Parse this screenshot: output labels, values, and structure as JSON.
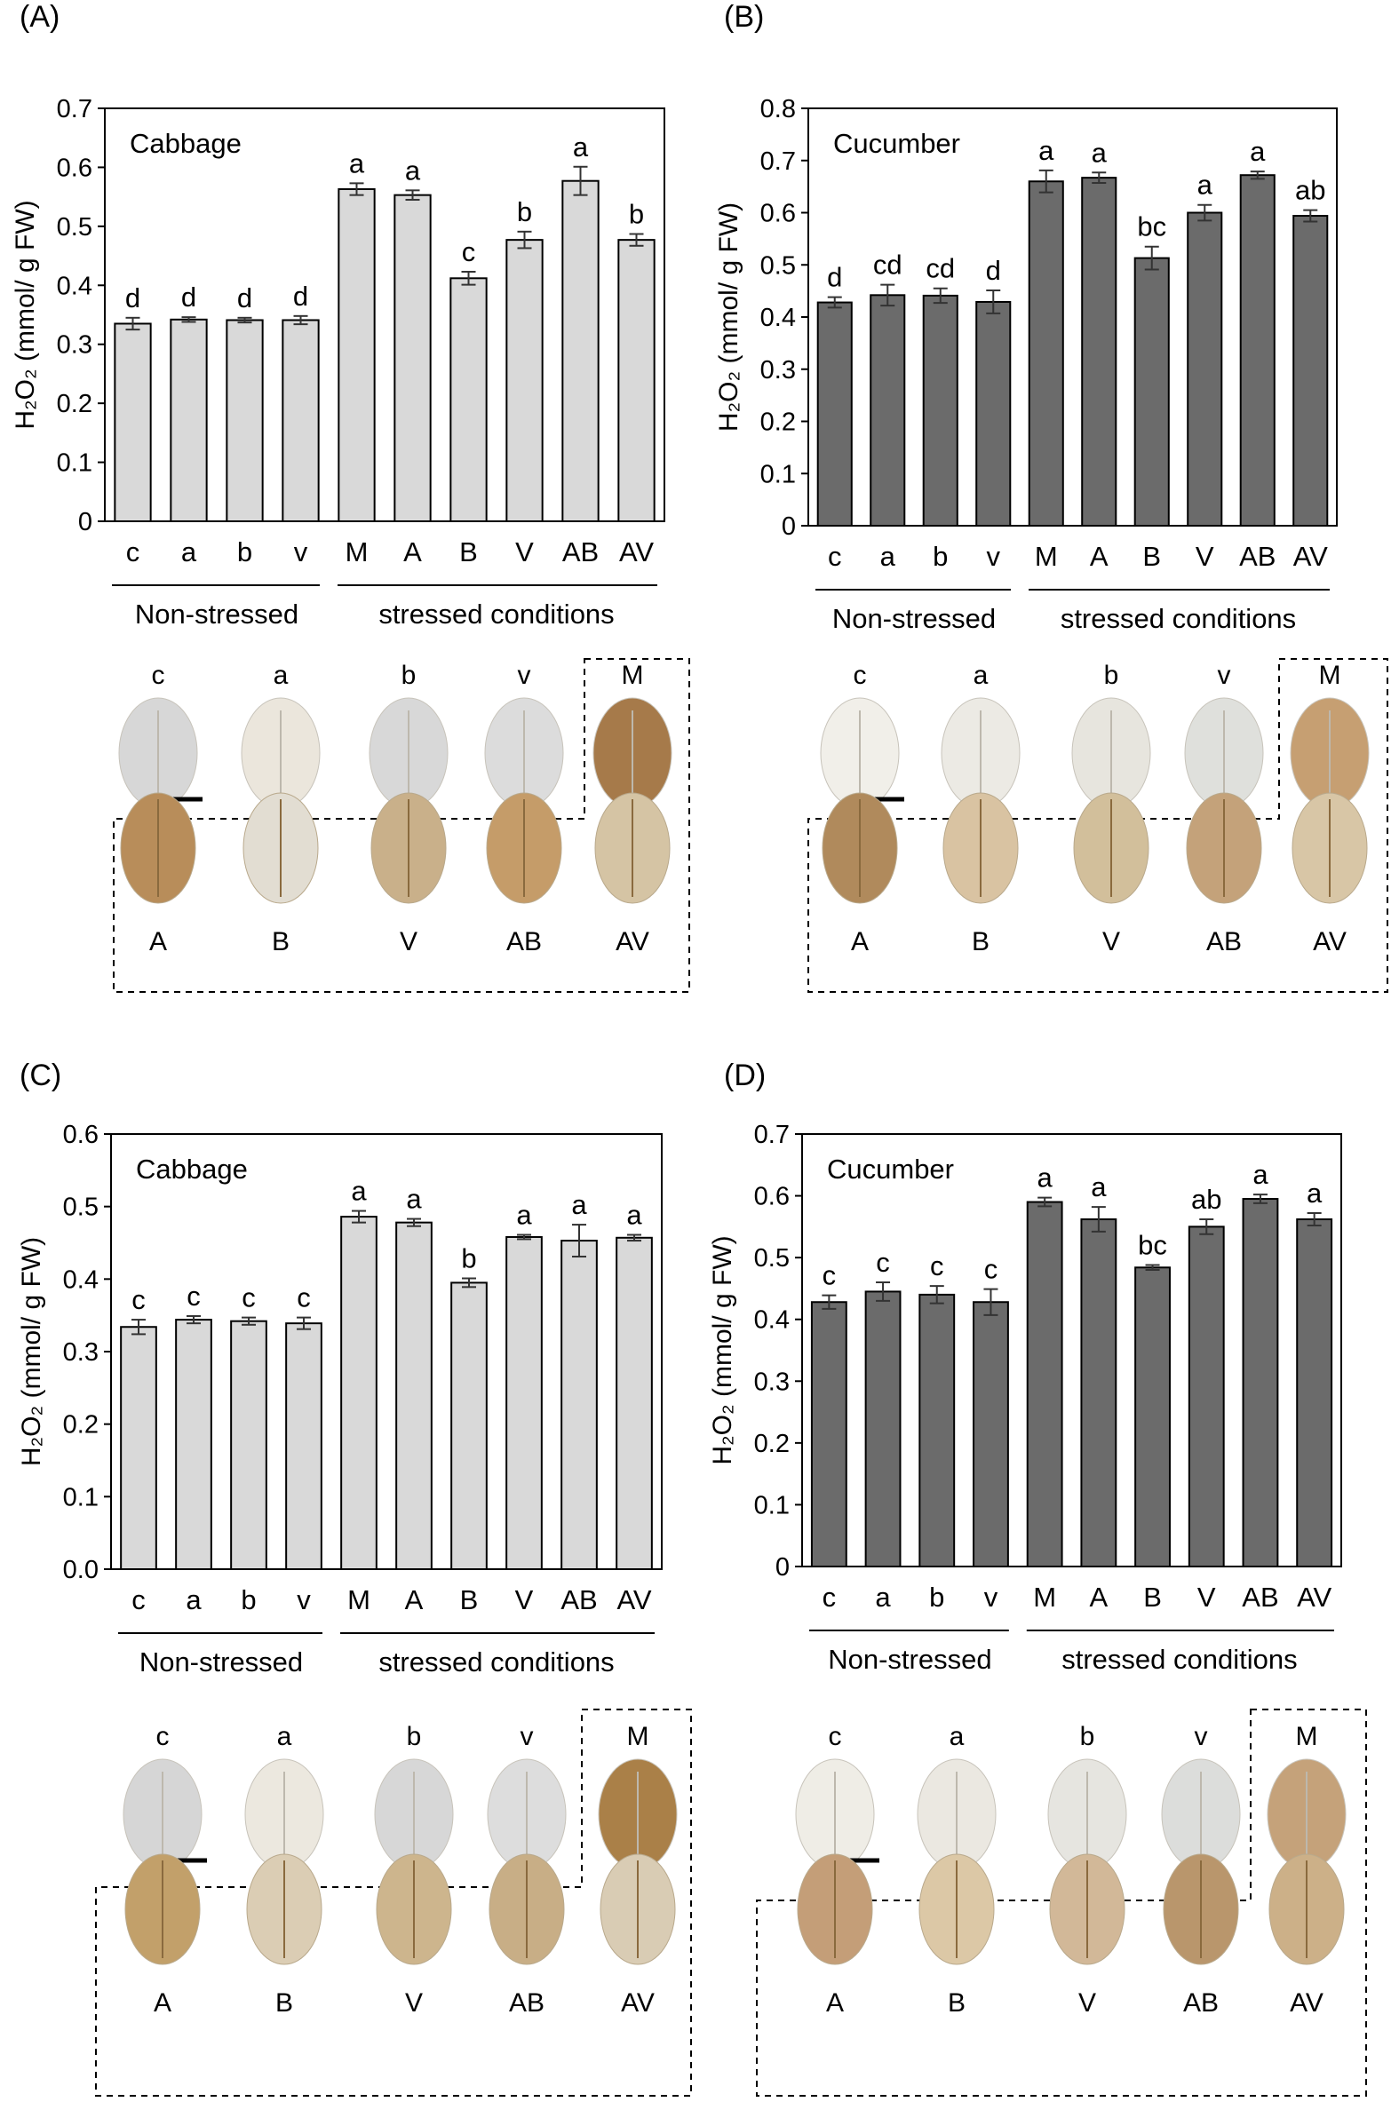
{
  "panels": [
    {
      "letter": "(A)"
    },
    {
      "letter": "(B)"
    },
    {
      "letter": "(C)"
    },
    {
      "letter": "(D)"
    }
  ],
  "chart_data": [
    {
      "type": "bar",
      "panel": "(A)",
      "title": "Cabbage",
      "ylabel": "H₂O₂ (mmol/ g FW)",
      "ylim": [
        0,
        0.7
      ],
      "yticks": [
        "0",
        "0.1",
        "0.2",
        "0.3",
        "0.4",
        "0.5",
        "0.6",
        "0.7"
      ],
      "categories": [
        "c",
        "a",
        "b",
        "v",
        "M",
        "A",
        "B",
        "V",
        "AB",
        "AV"
      ],
      "values": [
        0.335,
        0.342,
        0.341,
        0.341,
        0.563,
        0.553,
        0.412,
        0.477,
        0.577,
        0.477
      ],
      "errors": [
        0.01,
        0.004,
        0.004,
        0.007,
        0.01,
        0.008,
        0.011,
        0.014,
        0.024,
        0.01
      ],
      "significance": [
        "d",
        "d",
        "d",
        "d",
        "a",
        "a",
        "c",
        "b",
        "a",
        "b"
      ],
      "group_labels": [
        "Non-stressed",
        "stressed conditions"
      ],
      "bar_color": "#d9d9d9",
      "grid": false
    },
    {
      "type": "bar",
      "panel": "(B)",
      "title": "Cucumber",
      "ylabel": "H₂O₂ (mmol/ g FW)",
      "ylim": [
        0,
        0.8
      ],
      "yticks": [
        "0",
        "0.1",
        "0.2",
        "0.3",
        "0.4",
        "0.5",
        "0.6",
        "0.7",
        "0.8"
      ],
      "categories": [
        "c",
        "a",
        "b",
        "v",
        "M",
        "A",
        "B",
        "V",
        "AB",
        "AV"
      ],
      "values": [
        0.428,
        0.442,
        0.441,
        0.429,
        0.66,
        0.667,
        0.513,
        0.6,
        0.672,
        0.594
      ],
      "errors": [
        0.01,
        0.02,
        0.014,
        0.022,
        0.021,
        0.01,
        0.022,
        0.015,
        0.007,
        0.011
      ],
      "significance": [
        "d",
        "cd",
        "cd",
        "d",
        "a",
        "a",
        "bc",
        "a",
        "a",
        "ab"
      ],
      "group_labels": [
        "Non-stressed",
        "stressed conditions"
      ],
      "bar_color": "#6b6b6b",
      "grid": false
    },
    {
      "type": "bar",
      "panel": "(C)",
      "title": "Cabbage",
      "ylabel": "H₂O₂ (mmol/ g FW)",
      "ylim": [
        0,
        0.6
      ],
      "yticks": [
        "0.0",
        "0.1",
        "0.2",
        "0.3",
        "0.4",
        "0.5",
        "0.6"
      ],
      "categories": [
        "c",
        "a",
        "b",
        "v",
        "M",
        "A",
        "B",
        "V",
        "AB",
        "AV"
      ],
      "values": [
        0.334,
        0.344,
        0.342,
        0.339,
        0.486,
        0.478,
        0.395,
        0.458,
        0.453,
        0.457
      ],
      "errors": [
        0.01,
        0.005,
        0.005,
        0.008,
        0.008,
        0.005,
        0.006,
        0.003,
        0.022,
        0.004
      ],
      "significance": [
        "c",
        "c",
        "c",
        "c",
        "a",
        "a",
        "b",
        "a",
        "a",
        "a"
      ],
      "group_labels": [
        "Non-stressed",
        "stressed conditions"
      ],
      "bar_color": "#d9d9d9",
      "grid": false
    },
    {
      "type": "bar",
      "panel": "(D)",
      "title": "Cucumber",
      "ylabel": "H₂O₂ (mmol/ g FW)",
      "ylim": [
        0,
        0.7
      ],
      "yticks": [
        "0",
        "0.1",
        "0.2",
        "0.3",
        "0.4",
        "0.5",
        "0.6",
        "0.7"
      ],
      "categories": [
        "c",
        "a",
        "b",
        "v",
        "M",
        "A",
        "B",
        "V",
        "AB",
        "AV"
      ],
      "values": [
        0.428,
        0.445,
        0.44,
        0.428,
        0.59,
        0.562,
        0.484,
        0.55,
        0.595,
        0.562
      ],
      "errors": [
        0.011,
        0.015,
        0.014,
        0.021,
        0.007,
        0.02,
        0.004,
        0.012,
        0.007,
        0.01
      ],
      "significance": [
        "c",
        "c",
        "c",
        "c",
        "a",
        "a",
        "bc",
        "ab",
        "a",
        "a"
      ],
      "group_labels": [
        "Non-stressed",
        "stressed conditions"
      ],
      "bar_color": "#6b6b6b",
      "grid": false
    }
  ],
  "leaf_photos": [
    {
      "panel": "(A)",
      "top_labels": [
        "c",
        "a",
        "b",
        "v",
        "M"
      ],
      "bottom_labels": [
        "A",
        "B",
        "V",
        "AB",
        "AV"
      ],
      "top_colors": [
        "#d7d7d7",
        "#ebe6dc",
        "#d8d8d8",
        "#dcdcdc",
        "#a67a4a"
      ],
      "bottom_colors": [
        "#b88d5a",
        "#e2ddd2",
        "#c9b08a",
        "#c59c69",
        "#d5c4a4"
      ]
    },
    {
      "panel": "(B)",
      "top_labels": [
        "c",
        "a",
        "b",
        "v",
        "M"
      ],
      "bottom_labels": [
        "A",
        "B",
        "V",
        "AB",
        "AV"
      ],
      "top_colors": [
        "#f1efe9",
        "#eceae4",
        "#e7e5de",
        "#dfe0dc",
        "#c69f72"
      ],
      "bottom_colors": [
        "#b08a5c",
        "#d9c3a2",
        "#d2bf9b",
        "#c4a27a",
        "#d8c6a6"
      ]
    },
    {
      "panel": "(C)",
      "top_labels": [
        "c",
        "a",
        "b",
        "v",
        "M"
      ],
      "bottom_labels": [
        "A",
        "B",
        "V",
        "AB",
        "AV"
      ],
      "top_colors": [
        "#d6d6d6",
        "#ece8df",
        "#d7d7d7",
        "#dddddd",
        "#aa8048"
      ],
      "bottom_colors": [
        "#c2a06a",
        "#dbcdb4",
        "#cdb58d",
        "#c8ae86",
        "#d9ccb4"
      ]
    },
    {
      "panel": "(D)",
      "top_labels": [
        "c",
        "a",
        "b",
        "v",
        "M"
      ],
      "bottom_labels": [
        "A",
        "B",
        "V",
        "AB",
        "AV"
      ],
      "top_colors": [
        "#efede6",
        "#ebe8e1",
        "#e6e5e0",
        "#dcdddb",
        "#c5a27a"
      ],
      "bottom_colors": [
        "#c49e78",
        "#dcc8a6",
        "#d2b898",
        "#b9966c",
        "#ccb088"
      ]
    }
  ]
}
